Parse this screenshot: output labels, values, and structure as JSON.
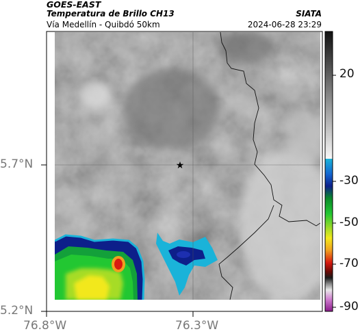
{
  "header": {
    "satellite": "GOES-EAST",
    "product": "Temperatura de Brillo CH13",
    "region": "Vía Medellín - Quibdó 50km",
    "source": "SIATA",
    "timestamp": "2024-06-28 23:29"
  },
  "axes": {
    "lat_ticks": [
      "5.7°N",
      "5.2°N"
    ],
    "lon_ticks": [
      "76.8°W",
      "76.3°W"
    ]
  },
  "colorbar": {
    "ticks": [
      "20",
      "-30",
      "-50",
      "-70",
      "-90"
    ]
  },
  "marker": {
    "icon": "star-icon"
  },
  "colors": {
    "background_gray": "#8f8f8f",
    "cold_cyan": "#1ab3d9",
    "deep_blue": "#0d1f8a",
    "green": "#22c732",
    "yellow": "#f2e81c",
    "red": "#d91a10"
  }
}
